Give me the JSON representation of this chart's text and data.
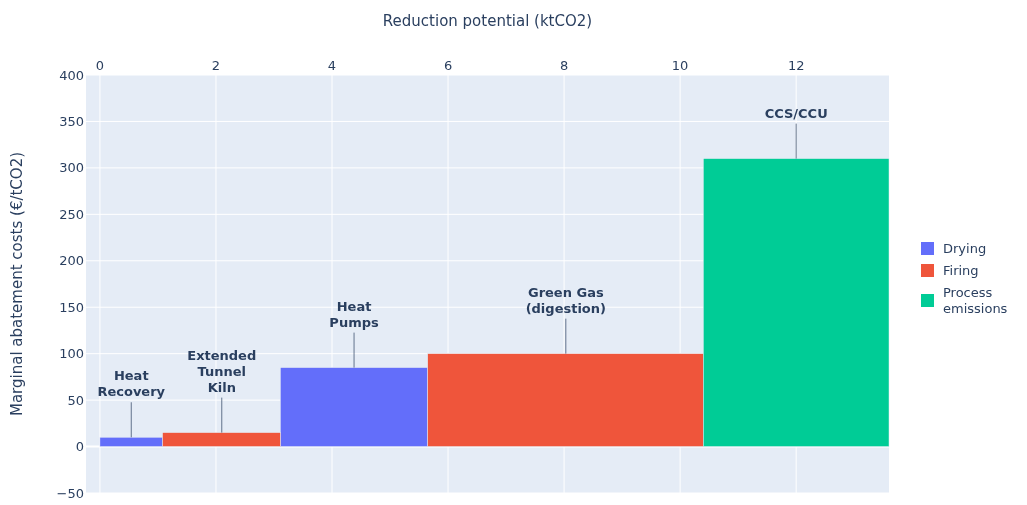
{
  "chart_data": {
    "type": "histogram",
    "xlabel": "Reduction potential (ktCO2)",
    "ylabel": "Marginal abatement costs (€/tCO2)",
    "bins": [
      0,
      1.08,
      3.11,
      5.65,
      10.4,
      13.6
    ],
    "series": [
      {
        "name": "Drying",
        "color": "#636efa",
        "values": [
          10,
          null,
          85,
          null,
          null
        ]
      },
      {
        "name": "Firing",
        "color": "#ef553b",
        "values": [
          null,
          15,
          null,
          100,
          null
        ]
      },
      {
        "name": "Process emissions",
        "color": "#00cc96",
        "values": [
          null,
          null,
          null,
          null,
          310
        ]
      }
    ],
    "xlim": [
      -0.24,
      13.6
    ],
    "xticks": [
      0,
      2,
      4,
      6,
      8,
      10,
      12
    ],
    "ylim": [
      -50,
      400
    ],
    "yticks": [
      -50,
      0,
      50,
      100,
      150,
      200,
      250,
      300,
      350,
      400
    ],
    "grid": true,
    "legend": "right",
    "annotations": [
      {
        "text": "Heat Recovery",
        "x": 0.54,
        "y": 10
      },
      {
        "text": "Extended Tunnel Kiln",
        "x": 2.1,
        "y": 15
      },
      {
        "text": "Heat Pumps",
        "x": 4.38,
        "y": 85
      },
      {
        "text": "Green Gas (digestion)",
        "x": 8.03,
        "y": 100
      },
      {
        "text": "CCS/CCU",
        "x": 12,
        "y": 310
      }
    ]
  }
}
